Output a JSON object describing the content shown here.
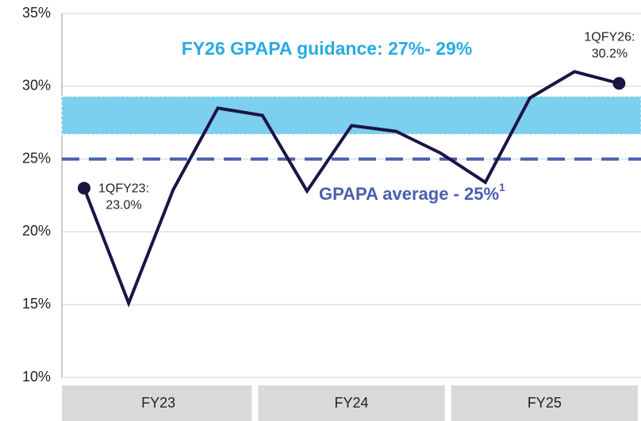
{
  "chart_data": {
    "type": "line",
    "categories": [
      null,
      null,
      null,
      null,
      null,
      null,
      null,
      null,
      null,
      null,
      null,
      null,
      null
    ],
    "groups": [
      "FY23",
      "FY24",
      "FY25"
    ],
    "series": [
      {
        "color": "#1b1446",
        "values": [
          23.0,
          15.1,
          22.9,
          28.5,
          28.0,
          22.8,
          27.3,
          26.9,
          25.4,
          23.4,
          29.2,
          31.0,
          30.2
        ]
      }
    ],
    "ylim": [
      10,
      35
    ],
    "yticks": [
      {
        "value": 10,
        "label": "10%"
      },
      {
        "value": 15,
        "label": "15%"
      },
      {
        "value": 20,
        "label": "20%"
      },
      {
        "value": 25,
        "label": "25%"
      },
      {
        "value": 30,
        "label": "30%"
      },
      {
        "value": 35,
        "label": "35%"
      }
    ],
    "grid": true,
    "guidance_band": {
      "range": [
        26.7,
        29.3
      ],
      "color": "#7ccfee",
      "label": "FY26 GPAPA guidance: 27%- 29%"
    },
    "average_line": {
      "value": 25,
      "color": "#4a5fae",
      "label": "GPAPA average - 25%",
      "footnote": "1"
    },
    "annotations": [
      {
        "index": 0,
        "lines": [
          "1QFY23:",
          "23.0%"
        ]
      },
      {
        "index": 12,
        "lines": [
          "1QFY26:",
          "30.2%"
        ]
      }
    ]
  }
}
